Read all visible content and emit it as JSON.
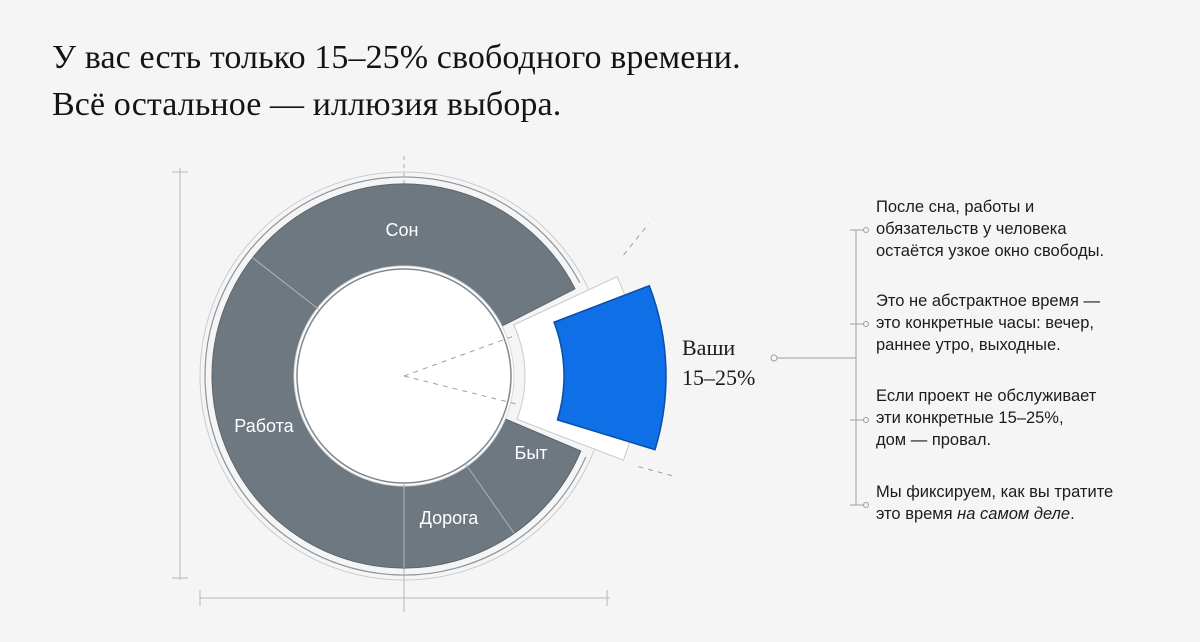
{
  "headline": {
    "line1": "У вас есть только 15–25% свободного времени.",
    "line2": "Всё остальное — иллюзия выбора."
  },
  "diagram": {
    "segments": [
      {
        "label": "Сон",
        "color": "#6e7881"
      },
      {
        "label": "Работа",
        "color": "#6e7881"
      },
      {
        "label": "Дорога",
        "color": "#6e7881"
      },
      {
        "label": "Быт",
        "color": "#6e7881"
      }
    ],
    "highlight": {
      "color": "#0f6fe6",
      "label_line1": "Ваши",
      "label_line2": "15–25%"
    }
  },
  "notes": [
    {
      "lines": [
        "После сна, работы и",
        "обязательств у человека",
        "остаётся узкое окно свободы."
      ]
    },
    {
      "lines": [
        "Это не абстрактное время —",
        "это конкретные часы: вечер,",
        "раннее утро, выходные."
      ]
    },
    {
      "lines": [
        "Если проект не обслуживает",
        "эти конкретные 15–25%,",
        "дом — провал."
      ]
    },
    {
      "line1_prefix": "Мы фиксируем, как вы тратите",
      "line2_prefix": "это время ",
      "line2_emphasis": "на самом деле",
      "line2_suffix": "."
    }
  ]
}
